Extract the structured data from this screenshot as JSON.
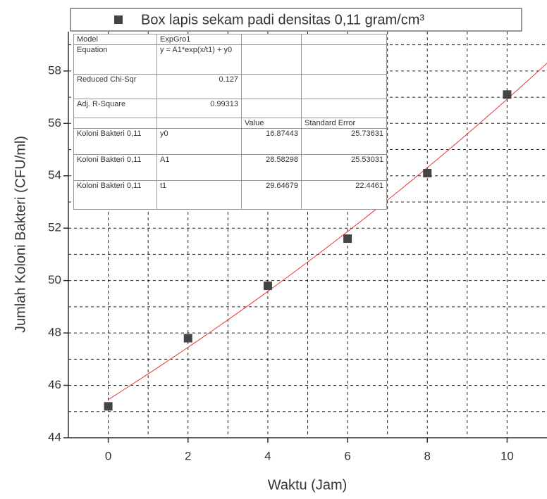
{
  "chart_data": {
    "type": "scatter",
    "x_label": "Waktu (Jam)",
    "y_label": "Jumlah Koloni Bakteri (CFU/ml)",
    "x": [
      0,
      2,
      4,
      6,
      8,
      10
    ],
    "series": [
      {
        "name": "Box lapis sekam padi densitas 0,11 gram/cm³",
        "color": "#444444",
        "values": [
          45.2,
          47.8,
          49.8,
          51.6,
          54.1,
          57.1
        ]
      }
    ],
    "fit_color": "#e53935",
    "xlim": [
      -1,
      11
    ],
    "xticks": [
      0,
      2,
      4,
      6,
      8,
      10
    ],
    "ylim": [
      44,
      59.5
    ],
    "yticks": [
      44,
      46,
      48,
      50,
      52,
      54,
      56,
      58
    ],
    "x_grid": [
      -1,
      0,
      1,
      2,
      3,
      4,
      5,
      6,
      7,
      8,
      9,
      10
    ],
    "y_grid": [
      45,
      46,
      47,
      48,
      49,
      50,
      51,
      52,
      53,
      54,
      55,
      56,
      57,
      58,
      59
    ],
    "fit_table": {
      "rows": [
        [
          "Model",
          "ExpGro1",
          null,
          null
        ],
        [
          "Equation",
          "y = A1*exp(x/t1) + y0",
          null,
          null
        ],
        [
          "Reduced Chi-Sqr",
          0.127,
          null,
          null
        ],
        [
          "Adj. R-Square",
          0.99313,
          null,
          null
        ],
        [
          null,
          null,
          "Value",
          "Standard Error"
        ],
        [
          "Koloni Bakteri 0,11",
          "y0",
          16.87443,
          25.73631
        ],
        [
          "Koloni Bakteri 0,11",
          "A1",
          28.58298,
          25.53031
        ],
        [
          "Koloni Bakteri 0,11",
          "t1",
          29.64679,
          22.4461
        ]
      ]
    }
  }
}
